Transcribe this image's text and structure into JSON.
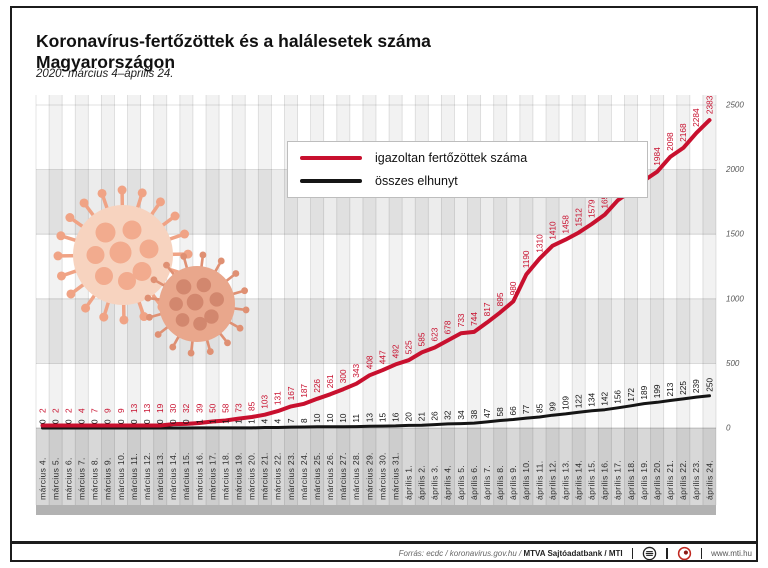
{
  "header": {
    "title_line1": "Koronavírus-fertőzöttek és a halálesetek száma",
    "title_line2": "Magyarországon",
    "subtitle": "2020. március 4–április 24."
  },
  "footer": {
    "source_prefix": "Forrás: ecdc / koronavirus.gov.hu /",
    "source_bold": "MTVA Sajtóadatbank / MTI",
    "site": "www.mti.hu"
  },
  "colors": {
    "accent_red": "#c8102e",
    "deaths_black": "#151515",
    "band_gray": "#ececec",
    "date_band_gray": "#d8d8d8",
    "bottom_strip_gray": "#b2b2b2",
    "virus_body_light": "#f7d3bf",
    "virus_spot_light": "#f2ab8e",
    "virus_body_dark": "#e9a78c",
    "virus_spot_dark": "#d2876e"
  },
  "chart_data": {
    "type": "line",
    "title": "Koronavírus-fertőzöttek és a halálesetek száma Magyarországon",
    "subtitle": "2020. március 4–április 24.",
    "xlabel": "",
    "ylabel": "",
    "ylim": [
      0,
      2500
    ],
    "yticks": [
      0,
      500,
      1000,
      1500,
      2000,
      2500
    ],
    "y_axis_side": "right",
    "grid": "vertical-stripes",
    "legend_position": "top-center",
    "categories": [
      "március 4.",
      "március 5.",
      "március 6.",
      "március 7.",
      "március 8.",
      "március 9.",
      "március 10.",
      "március 11.",
      "március 12.",
      "március 13.",
      "március 14.",
      "március 15.",
      "március 16.",
      "március 17.",
      "március 18.",
      "március 19.",
      "március 20.",
      "március 21.",
      "március 22.",
      "március 23.",
      "március 24.",
      "március 25.",
      "március 26.",
      "március 27.",
      "március 28.",
      "március 29.",
      "március 30.",
      "március 31.",
      "április 1.",
      "április 2.",
      "április 3.",
      "április 4.",
      "április 5.",
      "április 6.",
      "április 7.",
      "április 8.",
      "április 9.",
      "április 10.",
      "április 11.",
      "április 12.",
      "április 13.",
      "április 14.",
      "április 15.",
      "április 16.",
      "április 17.",
      "április 18.",
      "április 19.",
      "április 20.",
      "április 21.",
      "április 22.",
      "április 23.",
      "április 24."
    ],
    "series": [
      {
        "name": "igazoltan fertőzöttek száma",
        "color": "#c8102e",
        "values": [
          2,
          2,
          2,
          4,
          7,
          9,
          9,
          13,
          13,
          19,
          30,
          32,
          39,
          50,
          58,
          73,
          85,
          103,
          131,
          167,
          187,
          226,
          261,
          300,
          343,
          408,
          447,
          492,
          525,
          585,
          623,
          678,
          733,
          744,
          817,
          895,
          980,
          1190,
          1310,
          1410,
          1458,
          1512,
          1579,
          1652,
          1763,
          1834,
          1916,
          1984,
          2098,
          2168,
          2284,
          2383
        ]
      },
      {
        "name": "összes elhunyt",
        "color": "#151515",
        "values": [
          0,
          0,
          0,
          0,
          0,
          0,
          0,
          0,
          0,
          0,
          0,
          0,
          1,
          1,
          1,
          1,
          1,
          4,
          4,
          7,
          8,
          10,
          10,
          10,
          11,
          13,
          15,
          16,
          20,
          21,
          26,
          32,
          34,
          38,
          47,
          58,
          66,
          77,
          85,
          99,
          109,
          122,
          134,
          142,
          156,
          172,
          189,
          199,
          213,
          225,
          239,
          250
        ]
      }
    ]
  }
}
